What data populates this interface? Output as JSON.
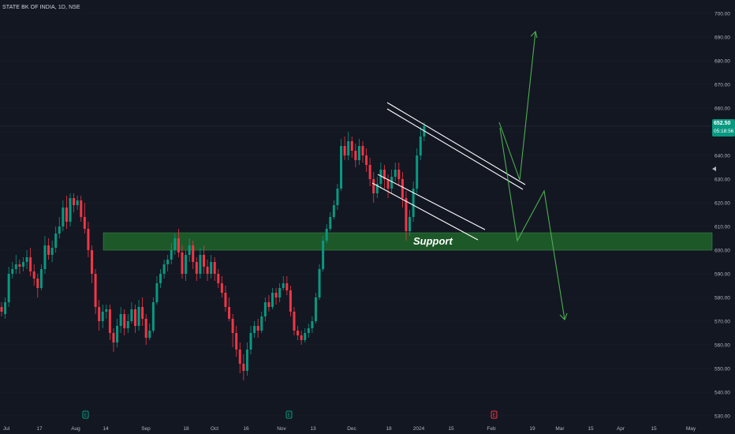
{
  "header": {
    "ticker_label": "STATE BK OF INDIA, 1D, NSE"
  },
  "price_label": {
    "price": "652.50",
    "countdown": "05:18:56"
  },
  "colors": {
    "background": "#131722",
    "up": "#089981",
    "down": "#f23645",
    "support_zone": "#1e5c2a",
    "channel_lines": "#ffffff",
    "projection": "#4caf50"
  },
  "chart_data": {
    "type": "candlestick",
    "title": "STATE BK OF INDIA, 1D, NSE",
    "ylim": [
      528,
      703
    ],
    "y_ticks": [
      530,
      540,
      550,
      560,
      570,
      580,
      590,
      600,
      610,
      620,
      630,
      640,
      650,
      660,
      670,
      680,
      690,
      700
    ],
    "y_tick_labels": [
      "530.00",
      "540.00",
      "550.00",
      "560.00",
      "570.00",
      "580.00",
      "590.00",
      "600.00",
      "610.00",
      "620.00",
      "630.00",
      "640.00",
      "650.00",
      "660.00",
      "670.00",
      "680.00",
      "690.00",
      "700.00"
    ],
    "x_tick_labels": [
      "Jul",
      "17",
      "Aug",
      "14",
      "Sep",
      "18",
      "Oct",
      "16",
      "Nov",
      "13",
      "Dec",
      "18",
      "2024",
      "15",
      "Feb",
      "19",
      "Mar",
      "15",
      "Apr",
      "15",
      "May"
    ],
    "support_zone": {
      "label": "Support",
      "low": 600,
      "high": 607.5
    },
    "last_price": 652.5,
    "candles": [
      [
        576,
        574,
        578,
        572
      ],
      [
        573,
        578,
        580,
        571
      ],
      [
        578,
        590,
        593,
        576
      ],
      [
        590,
        592,
        595,
        588
      ],
      [
        592,
        594,
        598,
        590
      ],
      [
        594,
        593,
        596,
        590
      ],
      [
        593,
        595,
        597,
        591
      ],
      [
        595,
        597,
        600,
        592
      ],
      [
        597,
        591,
        601,
        589
      ],
      [
        591,
        588,
        594,
        585
      ],
      [
        588,
        584,
        590,
        580
      ],
      [
        584,
        592,
        594,
        583
      ],
      [
        592,
        602,
        606,
        590
      ],
      [
        602,
        598,
        605,
        596
      ],
      [
        598,
        601,
        604,
        595
      ],
      [
        601,
        607,
        610,
        599
      ],
      [
        607,
        610,
        614,
        605
      ],
      [
        610,
        618,
        621,
        608
      ],
      [
        618,
        612,
        623,
        609
      ],
      [
        612,
        622,
        624,
        610
      ],
      [
        622,
        619,
        624,
        616
      ],
      [
        619,
        621,
        623,
        617
      ],
      [
        621,
        614,
        623,
        612
      ],
      [
        614,
        609,
        620,
        607
      ],
      [
        609,
        600,
        612,
        597
      ],
      [
        600,
        590,
        602,
        586
      ],
      [
        590,
        576,
        592,
        573
      ],
      [
        576,
        570,
        579,
        566
      ],
      [
        570,
        574,
        577,
        567
      ],
      [
        574,
        575,
        577,
        571
      ],
      [
        575,
        565,
        577,
        562
      ],
      [
        565,
        561,
        567,
        557
      ],
      [
        561,
        568,
        571,
        559
      ],
      [
        568,
        573,
        576,
        565
      ],
      [
        573,
        567,
        575,
        564
      ],
      [
        567,
        570,
        573,
        565
      ],
      [
        570,
        575,
        578,
        569
      ],
      [
        575,
        568,
        577,
        565
      ],
      [
        568,
        576,
        579,
        566
      ],
      [
        576,
        571,
        580,
        568
      ],
      [
        571,
        563,
        573,
        560
      ],
      [
        563,
        566,
        569,
        562
      ],
      [
        566,
        578,
        580,
        565
      ],
      [
        578,
        586,
        589,
        577
      ],
      [
        586,
        590,
        592,
        584
      ],
      [
        590,
        594,
        596,
        588
      ],
      [
        594,
        596,
        598,
        591
      ],
      [
        596,
        600,
        603,
        594
      ],
      [
        600,
        605,
        607,
        598
      ],
      [
        605,
        599,
        609,
        597
      ],
      [
        599,
        590,
        602,
        588
      ],
      [
        590,
        598,
        600,
        587
      ],
      [
        598,
        602,
        605,
        595
      ],
      [
        602,
        595,
        604,
        592
      ],
      [
        595,
        590,
        597,
        587
      ],
      [
        590,
        598,
        601,
        588
      ],
      [
        598,
        593,
        602,
        590
      ],
      [
        593,
        590,
        596,
        587
      ],
      [
        590,
        595,
        598,
        588
      ],
      [
        595,
        590,
        597,
        587
      ],
      [
        590,
        586,
        592,
        584
      ],
      [
        586,
        582,
        589,
        580
      ],
      [
        582,
        576,
        585,
        574
      ],
      [
        576,
        571,
        580,
        570
      ],
      [
        571,
        565,
        573,
        559
      ],
      [
        565,
        558,
        568,
        555
      ],
      [
        558,
        552,
        561,
        548
      ],
      [
        552,
        549,
        556,
        545
      ],
      [
        549,
        558,
        561,
        547
      ],
      [
        558,
        565,
        568,
        556
      ],
      [
        565,
        568,
        570,
        563
      ],
      [
        568,
        566,
        571,
        563
      ],
      [
        566,
        572,
        574,
        565
      ],
      [
        572,
        578,
        580,
        570
      ],
      [
        578,
        576,
        581,
        574
      ],
      [
        576,
        582,
        584,
        575
      ],
      [
        582,
        580,
        584,
        577
      ],
      [
        580,
        584,
        586,
        578
      ],
      [
        584,
        586,
        589,
        583
      ],
      [
        586,
        583,
        589,
        581
      ],
      [
        583,
        574,
        585,
        572
      ],
      [
        574,
        566,
        576,
        564
      ],
      [
        566,
        564,
        568,
        562
      ],
      [
        564,
        562,
        566,
        560
      ],
      [
        562,
        565,
        567,
        561
      ],
      [
        565,
        567,
        569,
        563
      ],
      [
        567,
        570,
        572,
        565
      ],
      [
        570,
        580,
        582,
        569
      ],
      [
        580,
        592,
        594,
        579
      ],
      [
        592,
        604,
        606,
        591
      ],
      [
        604,
        609,
        611,
        603
      ],
      [
        609,
        614,
        616,
        608
      ],
      [
        614,
        619,
        621,
        613
      ],
      [
        619,
        626,
        628,
        617
      ],
      [
        626,
        644,
        647,
        625
      ],
      [
        644,
        640,
        648,
        638
      ],
      [
        640,
        646,
        650,
        638
      ],
      [
        646,
        642,
        648,
        639
      ],
      [
        642,
        638,
        645,
        635
      ],
      [
        638,
        644,
        647,
        636
      ],
      [
        644,
        640,
        646,
        637
      ],
      [
        640,
        636,
        643,
        633
      ],
      [
        636,
        630,
        639,
        627
      ],
      [
        630,
        624,
        633,
        620
      ],
      [
        624,
        628,
        631,
        622
      ],
      [
        628,
        634,
        637,
        626
      ],
      [
        634,
        630,
        636,
        626
      ],
      [
        630,
        626,
        632,
        622
      ],
      [
        626,
        631,
        634,
        624
      ],
      [
        631,
        634,
        637,
        629
      ],
      [
        634,
        630,
        637,
        627
      ],
      [
        630,
        622,
        633,
        618
      ],
      [
        622,
        608,
        625,
        604
      ],
      [
        608,
        614,
        617,
        606
      ],
      [
        614,
        626,
        629,
        612
      ],
      [
        626,
        640,
        643,
        624
      ],
      [
        640,
        648,
        652,
        638
      ],
      [
        648,
        652.5,
        654,
        646
      ]
    ]
  }
}
